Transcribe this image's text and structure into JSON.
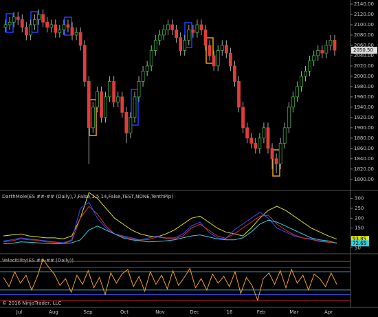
{
  "chart_data": [
    {
      "type": "candlestick",
      "ylim": [
        1781,
        2148
      ],
      "yticks": [
        {
          "value": 2140,
          "label": "2140.00"
        },
        {
          "value": 2120,
          "label": "2120.00"
        },
        {
          "value": 2100,
          "label": "2100.00"
        },
        {
          "value": 2080,
          "label": "2080.00"
        },
        {
          "value": 2060,
          "label": "2060.00"
        },
        {
          "value": 2040,
          "label": "2040.00"
        },
        {
          "value": 2020,
          "label": "2020.00"
        },
        {
          "value": 2000,
          "label": "2000.00"
        },
        {
          "value": 1980,
          "label": "1980.00"
        },
        {
          "value": 1960,
          "label": "1960.00"
        },
        {
          "value": 1940,
          "label": "1940.00"
        },
        {
          "value": 1920,
          "label": "1920.00"
        },
        {
          "value": 1900,
          "label": "1900.00"
        },
        {
          "value": 1880,
          "label": "1880.00"
        },
        {
          "value": 1860,
          "label": "1860.00"
        },
        {
          "value": 1840,
          "label": "1840.00"
        },
        {
          "value": 1820,
          "label": "1820.00"
        },
        {
          "value": 1800,
          "label": "1800.00"
        }
      ],
      "up_color": "#3cb043",
      "down_color": "#e03c3c",
      "open": [
        2095,
        2100,
        2105,
        2115,
        2110,
        2095,
        2080,
        2100,
        2110,
        2120,
        2105,
        2095,
        2100,
        2085,
        2090,
        2100,
        2095,
        2080,
        2085,
        2060,
        1990,
        1900,
        1940,
        1970,
        1920,
        1960,
        1990,
        1950,
        1960,
        1930,
        1890,
        1920,
        1960,
        1990,
        2010,
        2020,
        2050,
        2070,
        2080,
        2090,
        2100,
        2090,
        2075,
        2050,
        2070,
        2090,
        2085,
        2100,
        2090,
        2060,
        2040,
        2020,
        2050,
        2060,
        2045,
        2020,
        1990,
        1940,
        1900,
        1880,
        1870,
        1860,
        1880,
        1900,
        1860,
        1840,
        1830,
        1870,
        1900,
        1940,
        1960,
        1980,
        2000,
        2010,
        2030,
        2040,
        2050,
        2045,
        2060,
        2070
      ],
      "high": [
        2110,
        2115,
        2125,
        2125,
        2120,
        2105,
        2110,
        2120,
        2130,
        2130,
        2115,
        2110,
        2110,
        2100,
        2110,
        2110,
        2105,
        2095,
        2095,
        2070,
        2000,
        1950,
        1980,
        1980,
        1970,
        2000,
        2000,
        1970,
        1970,
        1940,
        1930,
        1970,
        2000,
        2020,
        2030,
        2060,
        2080,
        2090,
        2100,
        2110,
        2110,
        2100,
        2085,
        2080,
        2100,
        2100,
        2110,
        2110,
        2100,
        2070,
        2050,
        2060,
        2070,
        2070,
        2055,
        2030,
        2000,
        1950,
        1910,
        1890,
        1880,
        1890,
        1910,
        1910,
        1870,
        1850,
        1880,
        1910,
        1950,
        1970,
        1990,
        2010,
        2020,
        2040,
        2050,
        2060,
        2060,
        2070,
        2080,
        2080
      ],
      "low": [
        2085,
        2090,
        2095,
        2100,
        2085,
        2070,
        2070,
        2090,
        2100,
        2095,
        2085,
        2085,
        2075,
        2075,
        2080,
        2085,
        2070,
        2070,
        2050,
        1980,
        1830,
        1890,
        1930,
        1910,
        1910,
        1950,
        1940,
        1940,
        1920,
        1870,
        1880,
        1910,
        1950,
        1980,
        2000,
        2010,
        2040,
        2060,
        2070,
        2080,
        2080,
        2065,
        2040,
        2040,
        2060,
        2075,
        2075,
        2080,
        2050,
        2030,
        2010,
        2010,
        2040,
        2035,
        2010,
        1980,
        1930,
        1890,
        1870,
        1860,
        1850,
        1850,
        1870,
        1850,
        1820,
        1812,
        1820,
        1860,
        1890,
        1930,
        1950,
        1970,
        1990,
        2000,
        2020,
        2030,
        2035,
        2035,
        2050,
        2040
      ],
      "close": [
        2100,
        2105,
        2115,
        2110,
        2095,
        2080,
        2100,
        2110,
        2120,
        2105,
        2095,
        2100,
        2085,
        2090,
        2100,
        2095,
        2080,
        2085,
        2060,
        1990,
        1900,
        1940,
        1970,
        1920,
        1960,
        1990,
        1950,
        1960,
        1930,
        1890,
        1920,
        1960,
        1990,
        2010,
        2020,
        2050,
        2070,
        2080,
        2090,
        2100,
        2090,
        2075,
        2050,
        2070,
        2090,
        2085,
        2100,
        2090,
        2060,
        2040,
        2020,
        2050,
        2060,
        2045,
        2020,
        1990,
        1940,
        1900,
        1880,
        1870,
        1860,
        1880,
        1900,
        1860,
        1840,
        1830,
        1870,
        1900,
        1940,
        1960,
        1980,
        2000,
        2010,
        2030,
        2040,
        2050,
        2045,
        2060,
        2070,
        2050.5
      ],
      "last_label": "2050.50",
      "months": [
        "Jul",
        "Aug",
        "Sep",
        "Oct",
        "Nov",
        "Dec",
        "16",
        "Feb",
        "Mar",
        "Apr"
      ]
    },
    {
      "type": "line",
      "title": "DarthMole(ES ##-## (Daily),7,False,1.5,14,False,TEST,NONE,TenthPip)",
      "ylim": [
        30,
        330
      ],
      "yticks": [
        300,
        250,
        200,
        150,
        100,
        50
      ],
      "series": [
        {
          "color": "#e6e600",
          "values": [
            110,
            115,
            120,
            110,
            105,
            100,
            100,
            95,
            110,
            200,
            330,
            300,
            250,
            200,
            170,
            140,
            120,
            110,
            105,
            120,
            140,
            170,
            200,
            210,
            180,
            150,
            130,
            120,
            110,
            150,
            200,
            240,
            260,
            240,
            210,
            180,
            150,
            130,
            110,
            93.85
          ],
          "last_label": "93.85"
        },
        {
          "color": "#3050ff",
          "values": [
            85,
            90,
            100,
            95,
            90,
            85,
            80,
            75,
            90,
            250,
            280,
            200,
            150,
            120,
            110,
            100,
            90,
            100,
            110,
            100,
            100,
            120,
            160,
            180,
            130,
            100,
            95,
            140,
            170,
            200,
            230,
            200,
            150,
            130,
            110,
            100,
            95,
            85,
            80,
            72.65
          ]
        },
        {
          "color": "#e03030",
          "values": [
            80,
            85,
            95,
            90,
            88,
            80,
            78,
            72,
            85,
            200,
            260,
            220,
            160,
            120,
            105,
            95,
            88,
            92,
            105,
            98,
            95,
            110,
            150,
            170,
            140,
            110,
            98,
            120,
            150,
            180,
            210,
            215,
            170,
            140,
            115,
            100,
            92,
            82,
            78,
            75
          ]
        },
        {
          "color": "#30d0e0",
          "values": [
            70,
            72,
            80,
            78,
            75,
            72,
            70,
            72,
            75,
            90,
            140,
            160,
            140,
            120,
            100,
            90,
            85,
            80,
            82,
            85,
            90,
            100,
            110,
            115,
            105,
            95,
            90,
            90,
            100,
            130,
            170,
            190,
            180,
            160,
            140,
            120,
            100,
            90,
            85,
            72.65
          ],
          "last_label": "72.65"
        }
      ]
    },
    {
      "type": "line",
      "title": "Velocitility(ES ##-## (Daily))",
      "ylim": [
        -2.2,
        2.2
      ],
      "levels": [
        {
          "value": 1.7,
          "color": "#d02020"
        },
        {
          "value": -1.7,
          "color": "#d02020"
        },
        {
          "value": 1.2,
          "color": "#3050ff"
        },
        {
          "value": -1.2,
          "color": "#3050ff"
        },
        {
          "value": 0.8,
          "color": "#30c0e0"
        },
        {
          "value": -0.8,
          "color": "#30c0e0"
        }
      ],
      "series": [
        {
          "color": "#f0a020",
          "values": [
            0.3,
            -0.5,
            0.8,
            -0.2,
            0.5,
            -0.8,
            0.4,
            1.9,
            1.2,
            0.6,
            -0.4,
            0.2,
            -1.0,
            0.5,
            -0.3,
            0.9,
            -0.6,
            0.3,
            -1.2,
            0.7,
            -0.2,
            0.6,
            1.0,
            -0.5,
            0.4,
            -0.9,
            0.8,
            -0.3,
            0.5,
            -0.7,
            0.9,
            -0.4,
            0.3,
            1.1,
            -0.6,
            0.2,
            -0.8,
            0.6,
            -0.2,
            0.4,
            -0.5,
            0.8,
            -1.1,
            0.3,
            -0.4,
            -1.7,
            0.2,
            0.7,
            -0.3,
            0.9,
            -0.6,
            1.0,
            -0.2,
            0.5,
            -0.8,
            0.6,
            0.2,
            -0.5,
            0.7,
            -0.3
          ]
        }
      ],
      "copyright": "© 2016 NinjaTrader, LLC"
    }
  ]
}
